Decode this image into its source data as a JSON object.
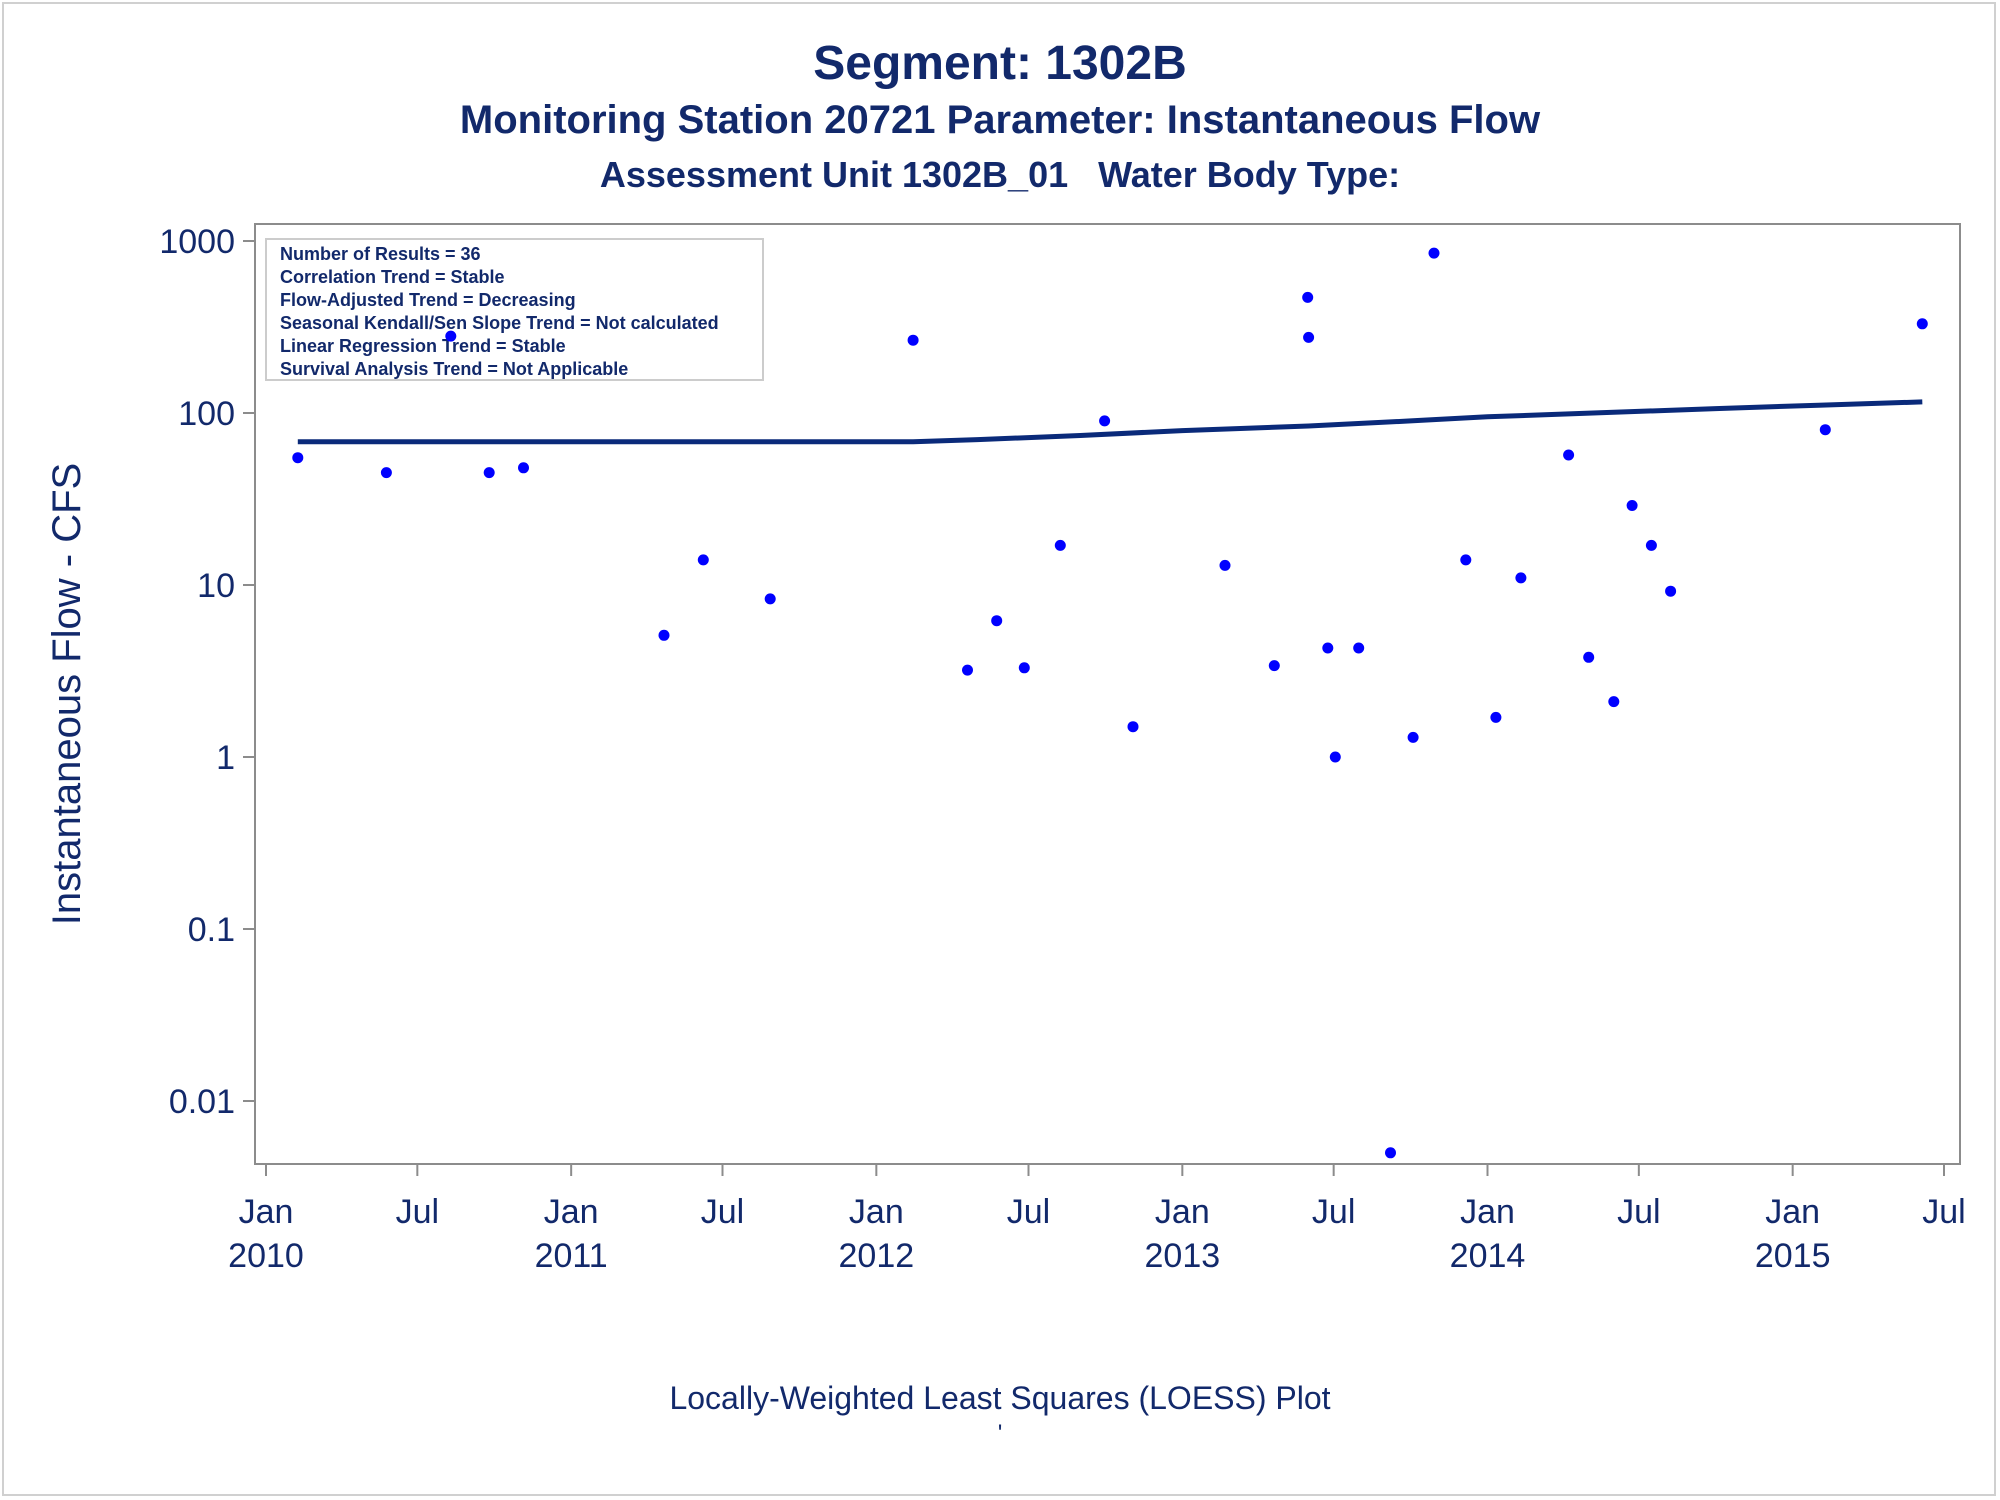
{
  "titles": {
    "line1": "Segment: 1302B",
    "line2": "Monitoring Station 20721 Parameter: Instantaneous Flow",
    "line3": "Assessment Unit 1302B_01   Water Body Type:"
  },
  "footnote": "Locally-Weighted Least Squares (LOESS) Plot",
  "footnote2": "'",
  "colors": {
    "text": "#12296b",
    "points": "#0000ff",
    "line": "#0a2a7a",
    "axis": "#8c8c8c"
  },
  "chart_data": {
    "type": "scatter",
    "ylabel": "Instantaneous Flow - CFS",
    "xlabel": "",
    "yscale": "log",
    "ylim": [
      0.005,
      1000
    ],
    "xlim": [
      "2009-12-01",
      "2015-07-31"
    ],
    "y_ticks": [
      {
        "value": 1000,
        "label": "1000"
      },
      {
        "value": 100,
        "label": "100"
      },
      {
        "value": 10,
        "label": "10"
      },
      {
        "value": 1,
        "label": "1"
      },
      {
        "value": 0.1,
        "label": "0.1"
      },
      {
        "value": 0.01,
        "label": "0.01"
      }
    ],
    "x_ticks": [
      {
        "date": "2010-01-01",
        "label": "Jan",
        "year": "2010"
      },
      {
        "date": "2010-07-01",
        "label": "Jul",
        "year": ""
      },
      {
        "date": "2011-01-01",
        "label": "Jan",
        "year": "2011"
      },
      {
        "date": "2011-07-01",
        "label": "Jul",
        "year": ""
      },
      {
        "date": "2012-01-01",
        "label": "Jan",
        "year": "2012"
      },
      {
        "date": "2012-07-01",
        "label": "Jul",
        "year": ""
      },
      {
        "date": "2013-01-01",
        "label": "Jan",
        "year": "2013"
      },
      {
        "date": "2013-07-01",
        "label": "Jul",
        "year": ""
      },
      {
        "date": "2014-01-01",
        "label": "Jan",
        "year": "2014"
      },
      {
        "date": "2014-07-01",
        "label": "Jul",
        "year": ""
      },
      {
        "date": "2015-01-01",
        "label": "Jan",
        "year": "2015"
      },
      {
        "date": "2015-07-01",
        "label": "Jul",
        "year": ""
      }
    ],
    "legend_position": "top-left",
    "legend_lines": [
      "Number of Results = 36",
      "Correlation Trend = Stable",
      "Flow-Adjusted Trend = Decreasing",
      "Seasonal Kendall/Sen Slope Trend = Not calculated",
      "Linear Regression Trend = Stable",
      "Survival Analysis Trend = Not Applicable"
    ],
    "points": [
      {
        "x": "2010-02-08",
        "y": 55
      },
      {
        "x": "2010-05-25",
        "y": 45
      },
      {
        "x": "2010-08-10",
        "y": 280
      },
      {
        "x": "2010-09-25",
        "y": 45
      },
      {
        "x": "2010-11-05",
        "y": 48
      },
      {
        "x": "2011-04-22",
        "y": 5.1
      },
      {
        "x": "2011-06-08",
        "y": 14
      },
      {
        "x": "2011-08-27",
        "y": 8.3
      },
      {
        "x": "2012-02-14",
        "y": 265
      },
      {
        "x": "2012-04-19",
        "y": 3.2
      },
      {
        "x": "2012-05-24",
        "y": 6.2
      },
      {
        "x": "2012-06-26",
        "y": 3.3
      },
      {
        "x": "2012-08-08",
        "y": 17
      },
      {
        "x": "2012-09-30",
        "y": 90
      },
      {
        "x": "2012-11-03",
        "y": 1.5
      },
      {
        "x": "2013-02-21",
        "y": 13
      },
      {
        "x": "2013-04-21",
        "y": 3.4
      },
      {
        "x": "2013-05-31",
        "y": 470
      },
      {
        "x": "2013-06-01",
        "y": 275
      },
      {
        "x": "2013-06-24",
        "y": 4.3
      },
      {
        "x": "2013-07-03",
        "y": 1.0
      },
      {
        "x": "2013-07-31",
        "y": 4.3
      },
      {
        "x": "2013-09-07",
        "y": 0.005
      },
      {
        "x": "2013-10-04",
        "y": 1.3
      },
      {
        "x": "2013-10-29",
        "y": 850
      },
      {
        "x": "2013-12-06",
        "y": 14
      },
      {
        "x": "2014-01-11",
        "y": 1.7
      },
      {
        "x": "2014-02-10",
        "y": 11
      },
      {
        "x": "2014-04-08",
        "y": 57
      },
      {
        "x": "2014-05-02",
        "y": 3.8
      },
      {
        "x": "2014-06-01",
        "y": 2.1
      },
      {
        "x": "2014-06-23",
        "y": 29
      },
      {
        "x": "2014-07-16",
        "y": 17
      },
      {
        "x": "2014-08-08",
        "y": 9.2
      },
      {
        "x": "2015-02-09",
        "y": 80
      },
      {
        "x": "2015-06-05",
        "y": 330
      }
    ],
    "loess_line": [
      {
        "x": "2010-02-08",
        "y": 68
      },
      {
        "x": "2012-02-14",
        "y": 68
      },
      {
        "x": "2012-05-01",
        "y": 70
      },
      {
        "x": "2012-09-01",
        "y": 74
      },
      {
        "x": "2013-01-01",
        "y": 79
      },
      {
        "x": "2013-06-01",
        "y": 84
      },
      {
        "x": "2013-10-01",
        "y": 90
      },
      {
        "x": "2014-01-01",
        "y": 95
      },
      {
        "x": "2014-06-01",
        "y": 101
      },
      {
        "x": "2014-10-01",
        "y": 106
      },
      {
        "x": "2015-02-01",
        "y": 111
      },
      {
        "x": "2015-06-05",
        "y": 116
      }
    ]
  }
}
